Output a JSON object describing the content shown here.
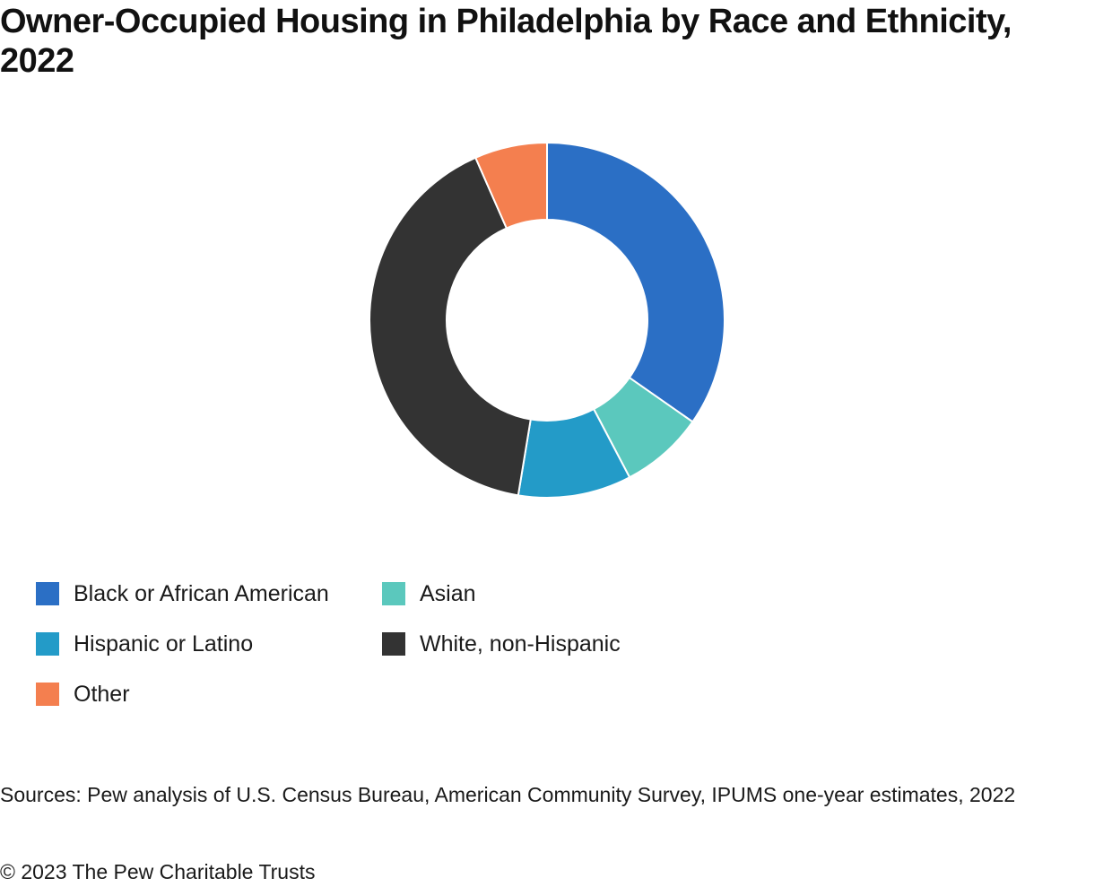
{
  "chart_data": {
    "type": "pie",
    "variant": "donut",
    "title": "Owner-Occupied Housing in Philadelphia by Race and Ethnicity, 2022",
    "unit": "percent of owner-occupied housing units (estimated from slice angles)",
    "categories": [
      "Black or African American",
      "Asian",
      "Hispanic or Latino",
      "White, non-Hispanic",
      "Other"
    ],
    "values": [
      34.7,
      7.6,
      10.3,
      40.8,
      6.6
    ],
    "colors": [
      "#2b6fc5",
      "#5bc8bd",
      "#239bc8",
      "#333333",
      "#f47f4f"
    ],
    "legend_position": "bottom-left",
    "legend": [
      {
        "label": "Black or African American",
        "color": "#2b6fc5"
      },
      {
        "label": "Asian",
        "color": "#5bc8bd"
      },
      {
        "label": "Hispanic or Latino",
        "color": "#239bc8"
      },
      {
        "label": "White, non-Hispanic",
        "color": "#333333"
      },
      {
        "label": "Other",
        "color": "#f47f4f"
      }
    ]
  },
  "footer": {
    "source": "Sources: Pew analysis of U.S. Census Bureau, American Community Survey, IPUMS one-year estimates, 2022",
    "copyright": "© 2023 The Pew Charitable Trusts"
  }
}
